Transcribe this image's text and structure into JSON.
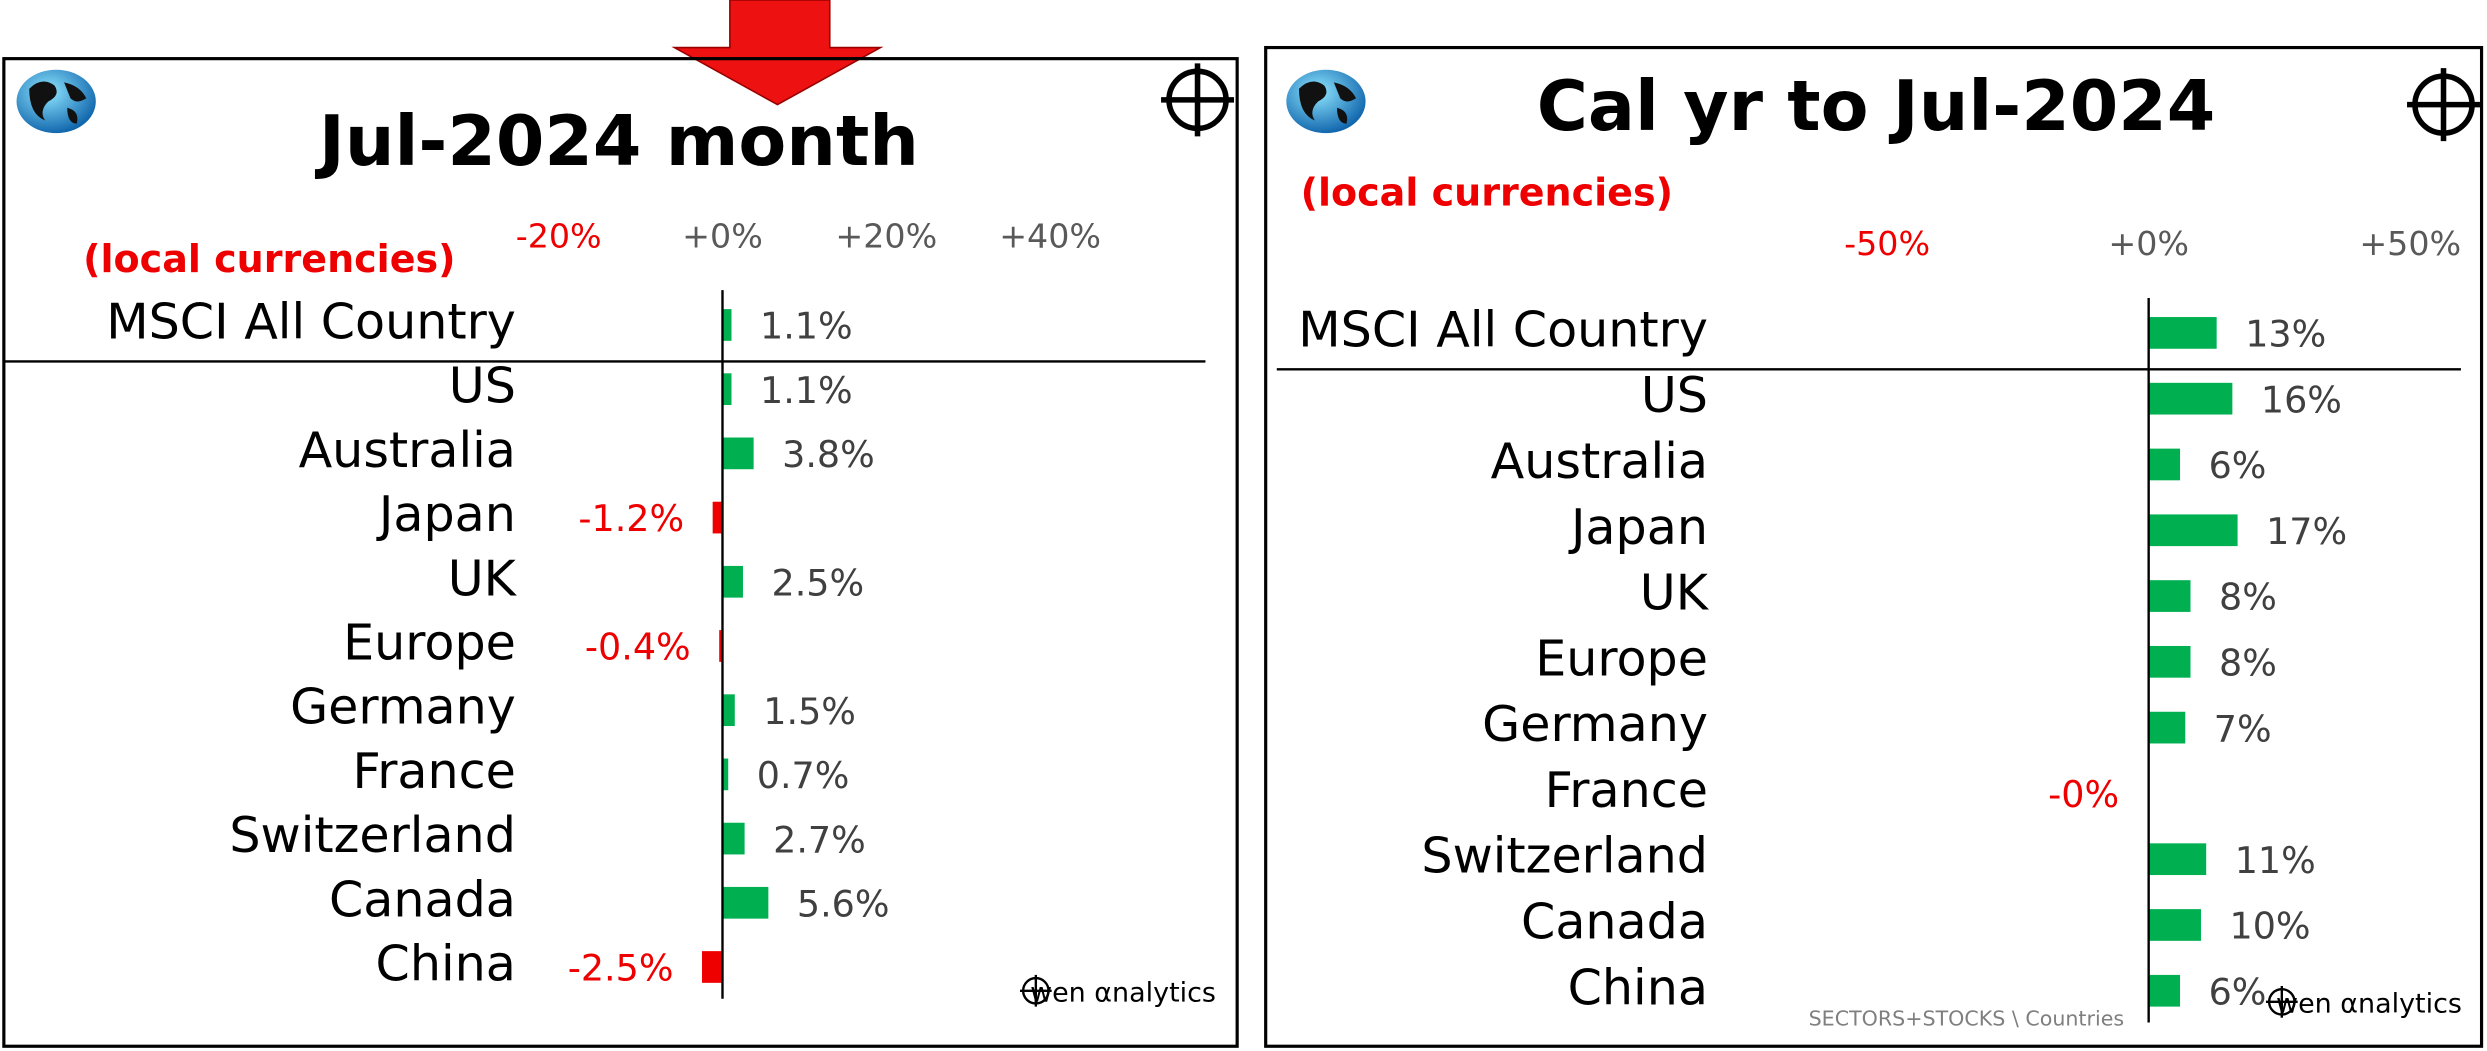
{
  "chart_data": [
    {
      "type": "bar",
      "title": "Jul-2024 month",
      "subtitle": "(local currencies)",
      "categories": [
        "MSCI All Country",
        "US",
        "Australia",
        "Japan",
        "UK",
        "Europe",
        "Germany",
        "France",
        "Switzerland",
        "Canada",
        "China"
      ],
      "values": [
        1.1,
        1.1,
        3.8,
        -1.2,
        2.5,
        -0.4,
        1.5,
        0.7,
        2.7,
        5.6,
        -2.5
      ],
      "value_labels": [
        "1.1%",
        "1.1%",
        "3.8%",
        "-1.2%",
        "2.5%",
        "-0.4%",
        "1.5%",
        "0.7%",
        "2.7%",
        "5.6%",
        "-2.5%"
      ],
      "xlim": [
        -20,
        40
      ],
      "xticks": [
        {
          "value": -20,
          "label": "-20%"
        },
        {
          "value": 0,
          "label": "+0%"
        },
        {
          "value": 20,
          "label": "+20%"
        },
        {
          "value": 40,
          "label": "+40%"
        }
      ],
      "positive_color": "#00b050",
      "negative_color": "#ee0000"
    },
    {
      "type": "bar",
      "title": "Cal yr to Jul-2024",
      "subtitle": "(local currencies)",
      "categories": [
        "MSCI All Country",
        "US",
        "Australia",
        "Japan",
        "UK",
        "Europe",
        "Germany",
        "France",
        "Switzerland",
        "Canada",
        "China"
      ],
      "values": [
        13,
        16,
        6,
        17,
        8,
        8,
        7,
        -0.2,
        11,
        10,
        6
      ],
      "value_labels": [
        "13%",
        "16%",
        "6%",
        "17%",
        "8%",
        "8%",
        "7%",
        "-0%",
        "11%",
        "10%",
        "6%"
      ],
      "xlim": [
        -50,
        50
      ],
      "xticks": [
        {
          "value": -50,
          "label": "-50%"
        },
        {
          "value": 0,
          "label": "+0%"
        },
        {
          "value": 50,
          "label": "+50%"
        }
      ],
      "positive_color": "#00b050",
      "negative_color": "#ee0000"
    }
  ],
  "footer": "SECTORS+STOCKS \\ Countries",
  "brand": "wen αnalytics"
}
